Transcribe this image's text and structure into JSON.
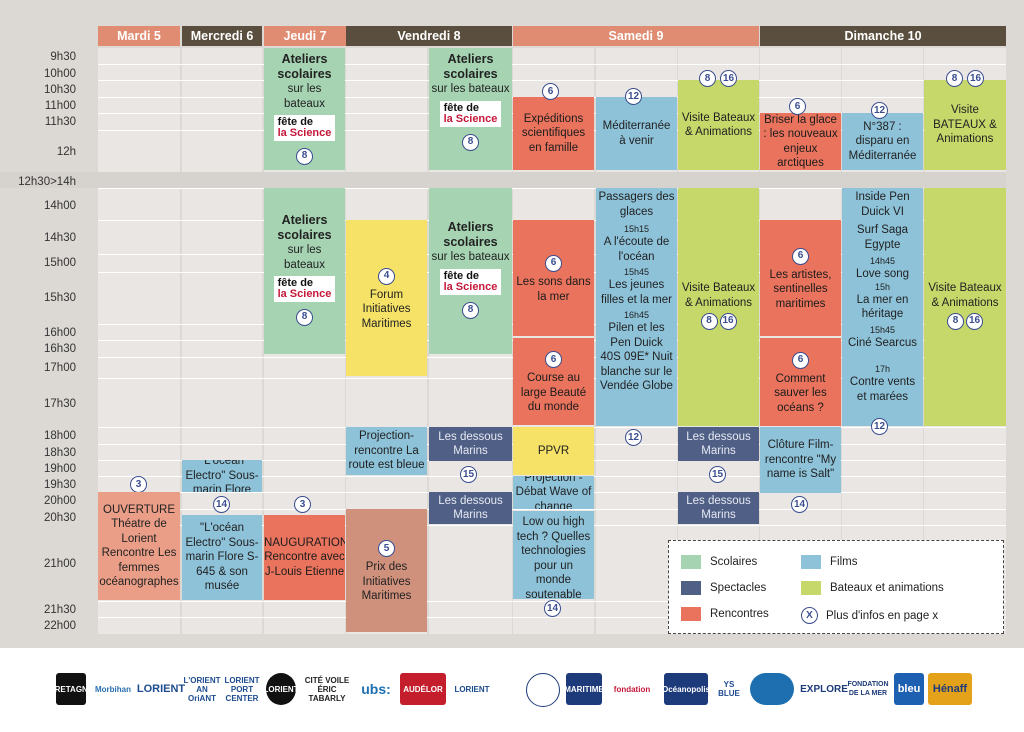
{
  "days": [
    {
      "label": "Mardi 5",
      "color": "#e08c72"
    },
    {
      "label": "Mercredi 6",
      "color": "#5a4f3e"
    },
    {
      "label": "Jeudi 7",
      "color": "#e08c72"
    },
    {
      "label": "Vendredi 8",
      "color": "#5a4f3e"
    },
    {
      "label": "Samedi 9",
      "color": "#e08c72"
    },
    {
      "label": "Dimanche 10",
      "color": "#5a4f3e"
    }
  ],
  "times": [
    "9h30",
    "10h00",
    "10h30",
    "11h00",
    "11h30",
    "12h",
    "12h30>14h",
    "14h00",
    "14h30",
    "15h00",
    "15h30",
    "16h00",
    "16h30",
    "17h00",
    "17h30",
    "18h00",
    "18h30",
    "19h00",
    "19h30",
    "20h00",
    "20h30",
    "21h00",
    "21h30",
    "22h00"
  ],
  "fete": {
    "line1": "fête de",
    "line2": "la Science"
  },
  "events": {
    "jeudi_am": {
      "title": "Ateliers scolaires",
      "sub": "sur les bateaux",
      "badge": "8"
    },
    "vendredi_am": {
      "title": "Ateliers scolaires",
      "sub": "sur les bateaux",
      "badge": "8"
    },
    "jeudi_pm": {
      "title": "Ateliers scolaires",
      "sub": "sur les bateaux",
      "badge": "8"
    },
    "vendredi_pm": {
      "title": "Ateliers scolaires",
      "sub": "sur les bateaux",
      "badge": "8"
    },
    "expeditions": {
      "badge": "6",
      "text": "Expéditions scientifiques en famille"
    },
    "mediterranee": {
      "badge": "12",
      "text": "Méditerranée à venir"
    },
    "visite_sam_am": {
      "badges": [
        "8",
        "16"
      ],
      "text": "Visite Bateaux & Animations"
    },
    "briser": {
      "badge": "6",
      "text": "Briser la glace : les nouveaux enjeux arctiques"
    },
    "n387": {
      "badge": "12",
      "text": "N°387 : disparu en Méditerranée"
    },
    "visite_dim_am": {
      "badges": [
        "8",
        "16"
      ],
      "text": "Visite BATEAUX & Animations"
    },
    "forum": {
      "badge": "4",
      "text": "Forum Initiatives Maritimes"
    },
    "sons": {
      "badge": "6",
      "text": "Les sons dans la mer"
    },
    "course": {
      "badge": "6",
      "text": "Course au large Beauté du monde"
    },
    "films_sam": {
      "t1": "Passagers des glaces",
      "h2": "15h15",
      "t2": "A l'écoute de l'océan",
      "h3": "15h45",
      "t3": "Les jeunes filles et la mer",
      "h4": "16h45",
      "t4": "Pilen et les Pen Duick",
      "t5": "40S 09E* Nuit blanche sur le Vendée Globe",
      "badge": "12"
    },
    "visite_sam_pm": {
      "text": "Visite Bateaux & Animations",
      "badges": [
        "8",
        "16"
      ]
    },
    "artistes": {
      "badge": "6",
      "text": "Les artistes, sentinelles maritimes"
    },
    "sauver": {
      "badge": "6",
      "text": "Comment sauver les océans ?"
    },
    "films_dim": {
      "t1": "Inside Pen Duick VI",
      "t2": "Surf Saga Egypte",
      "h3": "14h45",
      "t3": "Love song",
      "h4": "15h",
      "t4": "La mer en héritage",
      "h5": "15h45",
      "t5": "Ciné Searcus",
      "h6": "17h",
      "t6": "Contre vents et marées",
      "badge": "12"
    },
    "visite_dim_pm": {
      "text": "Visite Bateaux & Animations",
      "badges": [
        "8",
        "16"
      ]
    },
    "projection_ven": {
      "text": "Projection-rencontre La route est bleue"
    },
    "dessous_ven1": {
      "text": "Les dessous Marins",
      "badge": "15"
    },
    "dessous_ven2": {
      "text": "Les dessous Marins"
    },
    "ppvr": {
      "text": "PPVR"
    },
    "projection_debat": {
      "text": "Projection -Débat Wave of change"
    },
    "lowtech": {
      "text": "Low ou high tech ? Quelles technologies pour un monde soutenable",
      "badge": "14"
    },
    "dessous_sam1": {
      "text": "Les dessous Marins",
      "badge": "15"
    },
    "dessous_sam2": {
      "text": "Les dessous Marins"
    },
    "cloture": {
      "text": "Clôture Film-rencontre \"My name is Salt\"",
      "badge": "14"
    },
    "electro_mer1": {
      "badge_before": "3",
      "text": "\"L'océan Electro\" Sous-marin Flore",
      "badge": "14"
    },
    "electro_mer2": {
      "text": "\"L'océan Electro\" Sous-marin Flore S-645 & son musée"
    },
    "ouverture": {
      "text": "OUVERTURE Théatre de Lorient Rencontre Les femmes océanographes"
    },
    "inauguration": {
      "badge": "3",
      "text": "INAUGURATION Rencontre avec J-Louis Etienne"
    },
    "prix": {
      "badge": "5",
      "text": "Prix des Initiatives Maritimes"
    }
  },
  "legend": {
    "scolaires": "Scolaires",
    "films": "Films",
    "spectacles": "Spectacles",
    "bateaux": "Bateaux et animations",
    "rencontres": "Rencontres",
    "infos_badge": "X",
    "infos": "Plus d'infos en page x"
  },
  "logos": [
    "BRETAGNE",
    "Morbihan",
    "LORIENT",
    "L'ORIENT AN OriANT",
    "LORIENT PORT CENTER",
    "LORIENT",
    "CITÉ VOILE ÉRIC TABARLY",
    "ubs:",
    "AUDÉLOR",
    "LORIENT",
    "",
    "MARITIME",
    "fondation",
    "Océanopolis",
    "YS BLUE",
    "",
    "EXPLORE",
    "FONDATION DE LA MER",
    "bleu",
    "Hénaff"
  ]
}
